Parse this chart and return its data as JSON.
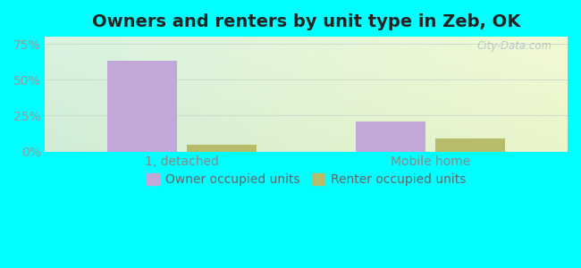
{
  "title": "Owners and renters by unit type in Zeb, OK",
  "categories": [
    "1, detached",
    "Mobile home"
  ],
  "owner_values": [
    63,
    21
  ],
  "renter_values": [
    5,
    9
  ],
  "owner_color": "#c2a8d8",
  "renter_color": "#b8bc6a",
  "yticks": [
    0,
    25,
    50,
    75
  ],
  "ytick_labels": [
    "0%",
    "25%",
    "50%",
    "75%"
  ],
  "ylim": [
    0,
    80
  ],
  "bar_width": 0.28,
  "outer_color": "#00ffff",
  "legend_labels": [
    "Owner occupied units",
    "Renter occupied units"
  ],
  "watermark": "City-Data.com",
  "title_fontsize": 14,
  "tick_fontsize": 10,
  "legend_fontsize": 10
}
